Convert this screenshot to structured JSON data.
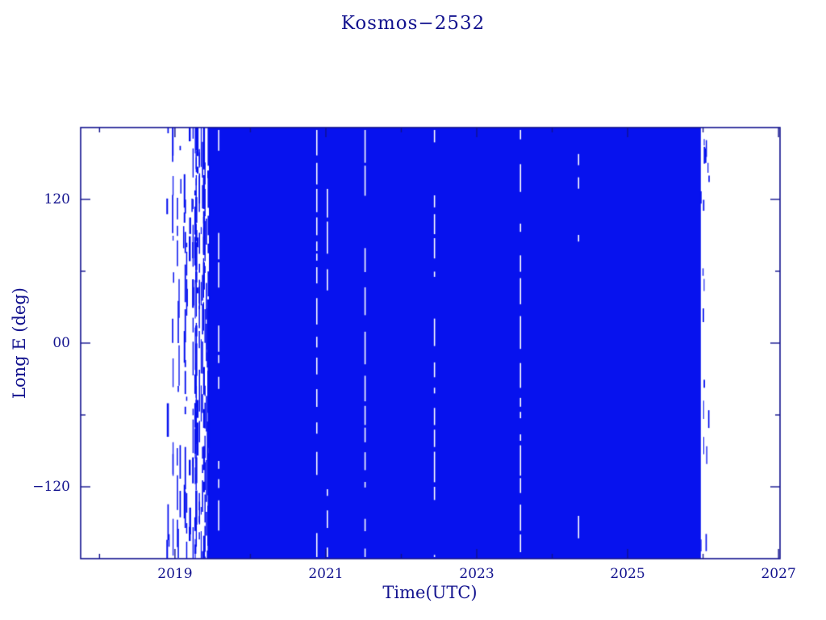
{
  "chart_data": {
    "type": "scatter",
    "title": "Kosmos−2532",
    "xlabel": "Time(UTC)",
    "ylabel": "Long E (deg)",
    "xlim": [
      2017.75,
      2027.02
    ],
    "ylim": [
      -180,
      180
    ],
    "xticks": [
      {
        "value": 2019,
        "label": "2019"
      },
      {
        "value": 2021,
        "label": "2021"
      },
      {
        "value": 2023,
        "label": "2023"
      },
      {
        "value": 2025,
        "label": "2025"
      },
      {
        "value": 2027,
        "label": "2027"
      }
    ],
    "yticks": [
      {
        "value": 120,
        "label": "120"
      },
      {
        "value": 0,
        "label": "00"
      },
      {
        "value": -120,
        "label": "−120"
      }
    ],
    "xtick_minor_step": 1,
    "ytick_minor_step": 60,
    "grid": false,
    "legend": null,
    "colors": {
      "axis": "#12128e",
      "text": "#12128e",
      "data": "#0712ee",
      "background": "#ffffff"
    },
    "series": [
      {
        "name": "longitude-ground-track",
        "description": "Rapidly drifting east longitude vs time; passes are so dense they fill the band almost solid blue over the full −180..180 deg range",
        "color": "#0712ee",
        "sparse_band": {
          "x_start": 2018.88,
          "x_end": 2019.45,
          "y_min": -180,
          "y_max": 180
        },
        "solid_band": {
          "x_start": 2019.45,
          "x_end": 2025.97,
          "y_min": -180,
          "y_max": 180
        },
        "white_gaps": [
          {
            "x": 2019.58,
            "coverage": 0.5
          },
          {
            "x": 2020.88,
            "coverage": 0.8
          },
          {
            "x": 2021.02,
            "coverage": 0.35
          },
          {
            "x": 2021.52,
            "coverage": 0.85
          },
          {
            "x": 2022.44,
            "coverage": 0.8
          },
          {
            "x": 2023.58,
            "coverage": 0.75
          },
          {
            "x": 2024.35,
            "coverage": 0.2
          }
        ],
        "ragged_edge_end": 2026.08
      }
    ]
  }
}
